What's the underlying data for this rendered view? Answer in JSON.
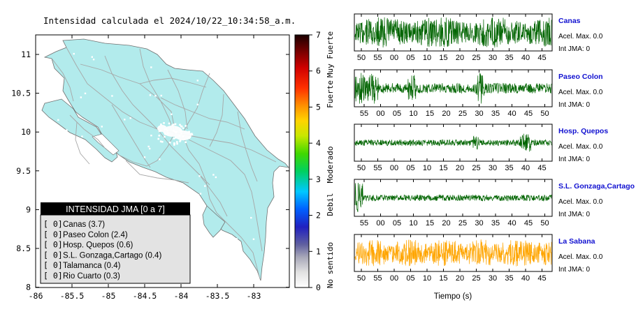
{
  "map": {
    "title": "Intensidad calculada el 2024/10/22_10:34:58_a.m.",
    "x_ticks": [
      "-86",
      "-85.5",
      "-85",
      "-84.5",
      "-84",
      "-83.5",
      "-83"
    ],
    "y_ticks": [
      "11",
      "10.5",
      "10",
      "9.5",
      "9",
      "8.5",
      "8"
    ],
    "legend": {
      "header": "INTENSIDAD JMA [0 a 7]",
      "items": [
        {
          "value": "[ 0]",
          "name": "Canas (3.7)"
        },
        {
          "value": "[ 0]",
          "name": "Paseo Colon (2.4)"
        },
        {
          "value": "[ 0]",
          "name": "Hosp. Quepos (0.6)"
        },
        {
          "value": "[ 0]",
          "name": "S.L. Gonzaga,Cartago (0.4)"
        },
        {
          "value": "[ 0]",
          "name": "Talamanca (0.4)"
        },
        {
          "value": "[ 0]",
          "name": "Rio Cuarto (0.3)"
        }
      ]
    },
    "colors": {
      "land": "#b2ebec",
      "roads": "#a6a6a6",
      "legend_header_bg": "#000000",
      "legend_body_bg": "#e3e3e3"
    }
  },
  "colorbar": {
    "ticks": [
      "7",
      "6",
      "5",
      "4",
      "3",
      "2",
      "1",
      "0"
    ],
    "levels": [
      "Muy Fuerte",
      "Fuerte",
      "Moderado",
      "Debil",
      "No sentido"
    ],
    "colors": [
      "#1a0000",
      "#8b0000",
      "#ff1a00",
      "#ff8000",
      "#ffd400",
      "#80e000",
      "#00c000",
      "#00c8ff",
      "#0050ff",
      "#3030a0",
      "#9090b0",
      "#dddddd",
      "#ffffff"
    ]
  },
  "waveforms": {
    "xlabel": "Tiempo (s)",
    "panels": [
      {
        "station": "Canas",
        "acel": "Acel. Max. 0.0",
        "int": "Int JMA: 0",
        "color": "#006400",
        "ticks": [
          "50",
          "55",
          "00",
          "05",
          "10",
          "15",
          "20",
          "25",
          "30",
          "35",
          "40",
          "45"
        ]
      },
      {
        "station": "Paseo Colon",
        "acel": "Acel. Max. 0.0",
        "int": "Int JMA: 0",
        "color": "#006400",
        "ticks": [
          "55",
          "00",
          "05",
          "10",
          "15",
          "20",
          "25",
          "30",
          "35",
          "40",
          "45",
          "50"
        ]
      },
      {
        "station": "Hosp. Quepos",
        "acel": "Acel. Max. 0.0",
        "int": "Int JMA: 0",
        "color": "#006400",
        "ticks": [
          "50",
          "55",
          "00",
          "05",
          "10",
          "15",
          "20",
          "25",
          "30",
          "35",
          "40",
          "45"
        ]
      },
      {
        "station": "S.L. Gonzaga,Cartago",
        "acel": "Acel. Max. 0.0",
        "int": "Int JMA: 0",
        "color": "#006400",
        "ticks": [
          "55",
          "00",
          "05",
          "10",
          "15",
          "20",
          "25",
          "30",
          "35",
          "40",
          "45",
          "50"
        ]
      },
      {
        "station": "La Sabana",
        "acel": "Acel. Max. 0.0",
        "int": "Int JMA: 0",
        "color": "#ffa500",
        "ticks": [
          "50",
          "55",
          "00",
          "05",
          "10",
          "15",
          "20",
          "25",
          "30",
          "35",
          "40",
          "45"
        ]
      }
    ]
  }
}
